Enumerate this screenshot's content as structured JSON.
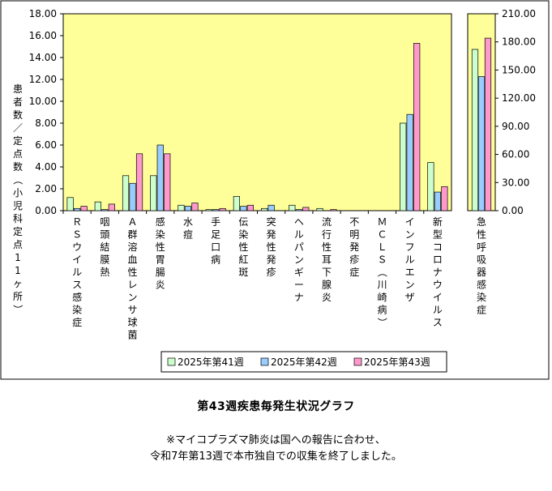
{
  "chart_data": {
    "type": "bar",
    "ylabel": "患者数／定点数（小児科定点11ヶ所）",
    "ylim": [
      0,
      18
    ],
    "yticks": [
      "0.00",
      "2.00",
      "4.00",
      "6.00",
      "8.00",
      "10.00",
      "12.00",
      "14.00",
      "16.00",
      "18.00"
    ],
    "categories": [
      "ＲＳウイルス感染症",
      "咽頭結膜熱",
      "Ａ群溶血性レンサ球菌",
      "感染性胃腸炎",
      "水痘",
      "手足口病",
      "伝染性紅斑",
      "突発性発疹",
      "ヘルパンギーナ",
      "流行性耳下腺炎",
      "不明発疹症",
      "ＭＣＬＳ（川崎病）",
      "インフルエンザ",
      "新型コロナウイルス"
    ],
    "series": [
      {
        "name": "2025年第41週",
        "color": "#ccffcc",
        "values": [
          1.2,
          0.8,
          3.2,
          3.2,
          0.5,
          0.1,
          1.3,
          0.2,
          0.5,
          0.2,
          0.0,
          0.0,
          8.0,
          4.4
        ]
      },
      {
        "name": "2025年第42週",
        "color": "#99ccff",
        "values": [
          0.2,
          0.1,
          2.5,
          6.0,
          0.4,
          0.1,
          0.4,
          0.5,
          0.1,
          0.0,
          0.0,
          0.0,
          8.8,
          1.7
        ]
      },
      {
        "name": "2025年第43週",
        "color": "#ff99cc",
        "values": [
          0.4,
          0.6,
          5.2,
          5.2,
          0.7,
          0.2,
          0.5,
          0.0,
          0.3,
          0.1,
          0.0,
          0.0,
          15.3,
          2.2
        ]
      }
    ],
    "secondary": {
      "categories": [
        "急性呼吸器感染症"
      ],
      "ylim": [
        0,
        210
      ],
      "yticks": [
        "0.00",
        "30.00",
        "60.00",
        "90.00",
        "120.00",
        "150.00",
        "180.00",
        "210.00"
      ],
      "values": [
        172,
        143,
        184
      ]
    },
    "plot_background": "#ffff99",
    "grid": false,
    "legend_placement": "bottom-right"
  },
  "caption": {
    "title": "第43週疾患毎発生状況グラフ",
    "note_line1": "※マイコプラズマ肺炎は国への報告に合わせ、",
    "note_line2": "令和7年第13週で本市独自での収集を終了しました。"
  }
}
